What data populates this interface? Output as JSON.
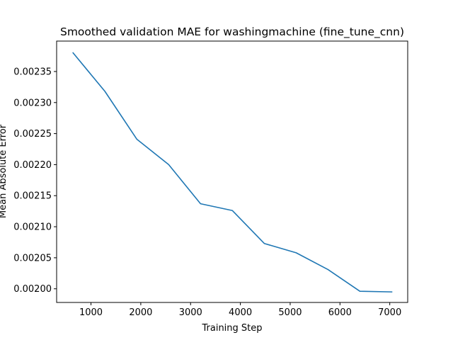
{
  "chart_data": {
    "type": "line",
    "title": "Smoothed validation MAE for washingmachine (fine_tune_cnn)",
    "xlabel": "Training Step",
    "ylabel": "Mean Absolute Error",
    "xlim": [
      310,
      7360
    ],
    "ylim": [
      0.001978,
      0.002399
    ],
    "xticks": [
      1000,
      2000,
      3000,
      4000,
      5000,
      6000,
      7000
    ],
    "xtick_labels": [
      "1000",
      "2000",
      "3000",
      "4000",
      "5000",
      "6000",
      "7000"
    ],
    "yticks": [
      0.002,
      0.00205,
      0.0021,
      0.00215,
      0.0022,
      0.00225,
      0.0023,
      0.00235
    ],
    "ytick_labels": [
      "0.00200",
      "0.00205",
      "0.00210",
      "0.00215",
      "0.00220",
      "0.00225",
      "0.00230",
      "0.00235"
    ],
    "grid": false,
    "color": "#1f77b4",
    "series": [
      {
        "x": [
          640,
          1280,
          1920,
          2560,
          3200,
          3840,
          4480,
          5120,
          5760,
          6400,
          7040
        ],
        "values": [
          0.00238,
          0.002318,
          0.002241,
          0.0022,
          0.002137,
          0.002126,
          0.002073,
          0.002058,
          0.002031,
          0.001996,
          0.001995
        ]
      }
    ]
  }
}
